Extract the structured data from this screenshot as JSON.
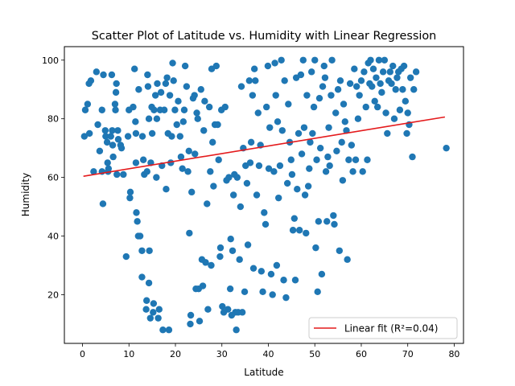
{
  "chart_data": {
    "type": "scatter",
    "title": "Scatter Plot of Latitude vs. Humidity with Linear Regression",
    "xlabel": "Latitude",
    "ylabel": "Humidity",
    "xlim": [
      -3.9,
      82.0
    ],
    "ylim": [
      3.4,
      104.6
    ],
    "xticks": [
      0,
      10,
      20,
      30,
      40,
      50,
      60,
      70,
      80
    ],
    "yticks": [
      20,
      40,
      60,
      80,
      100
    ],
    "grid": false,
    "legend_position": "lower right",
    "series": [
      {
        "kind": "scatter",
        "color": "#1f77b4",
        "points": [
          [
            0.4,
            74
          ],
          [
            0.6,
            83
          ],
          [
            1.1,
            85
          ],
          [
            1.4,
            92
          ],
          [
            1.8,
            93
          ],
          [
            1.5,
            75
          ],
          [
            2.4,
            62
          ],
          [
            3.0,
            96
          ],
          [
            3.3,
            78
          ],
          [
            3.7,
            69
          ],
          [
            4.2,
            62
          ],
          [
            4.2,
            83
          ],
          [
            4.4,
            51
          ],
          [
            4.5,
            95
          ],
          [
            4.9,
            76
          ],
          [
            5.0,
            74
          ],
          [
            5.3,
            72
          ],
          [
            5.4,
            65
          ],
          [
            5.5,
            62
          ],
          [
            5.6,
            63
          ],
          [
            6.1,
            74
          ],
          [
            6.3,
            95
          ],
          [
            6.4,
            76
          ],
          [
            6.5,
            71
          ],
          [
            6.6,
            67
          ],
          [
            7.0,
            85
          ],
          [
            7.1,
            83
          ],
          [
            7.2,
            89
          ],
          [
            7.3,
            92
          ],
          [
            7.4,
            61
          ],
          [
            7.6,
            76
          ],
          [
            7.7,
            73
          ],
          [
            8.2,
            71
          ],
          [
            8.4,
            70
          ],
          [
            8.8,
            61
          ],
          [
            9.4,
            33
          ],
          [
            9.8,
            74
          ],
          [
            10.0,
            83
          ],
          [
            10.2,
            53
          ],
          [
            10.3,
            55
          ],
          [
            10.9,
            84
          ],
          [
            11.2,
            97
          ],
          [
            11.4,
            79
          ],
          [
            11.5,
            75
          ],
          [
            11.5,
            65
          ],
          [
            11.6,
            48
          ],
          [
            11.8,
            45
          ],
          [
            12.0,
            40
          ],
          [
            12.1,
            90
          ],
          [
            12.4,
            40
          ],
          [
            12.8,
            35
          ],
          [
            12.8,
            26
          ],
          [
            12.9,
            74
          ],
          [
            13.1,
            66
          ],
          [
            13.3,
            61
          ],
          [
            13.7,
            15
          ],
          [
            13.8,
            18
          ],
          [
            13.9,
            62
          ],
          [
            14.0,
            95
          ],
          [
            14.1,
            91
          ],
          [
            14.3,
            80
          ],
          [
            14.3,
            24
          ],
          [
            14.4,
            35
          ],
          [
            14.6,
            12
          ],
          [
            14.7,
            65
          ],
          [
            14.9,
            84
          ],
          [
            15.0,
            75
          ],
          [
            15.2,
            14
          ],
          [
            15.3,
            17
          ],
          [
            15.4,
            83
          ],
          [
            15.7,
            88
          ],
          [
            15.9,
            60
          ],
          [
            16.0,
            80
          ],
          [
            16.1,
            92
          ],
          [
            16.3,
            12
          ],
          [
            16.5,
            15
          ],
          [
            16.7,
            83
          ],
          [
            16.9,
            89
          ],
          [
            17.1,
            64
          ],
          [
            17.3,
            8
          ],
          [
            17.6,
            83
          ],
          [
            17.9,
            92
          ],
          [
            18.0,
            56
          ],
          [
            18.2,
            94
          ],
          [
            18.4,
            75
          ],
          [
            18.6,
            8
          ],
          [
            18.8,
            88
          ],
          [
            19.0,
            65
          ],
          [
            19.2,
            74
          ],
          [
            19.4,
            99
          ],
          [
            19.6,
            93
          ],
          [
            19.9,
            83
          ],
          [
            20.3,
            78
          ],
          [
            20.6,
            86
          ],
          [
            21.0,
            74
          ],
          [
            21.2,
            67
          ],
          [
            21.5,
            63
          ],
          [
            21.7,
            79
          ],
          [
            21.9,
            83
          ],
          [
            22.1,
            98
          ],
          [
            22.4,
            91
          ],
          [
            22.7,
            62
          ],
          [
            22.9,
            69
          ],
          [
            23.0,
            41
          ],
          [
            23.2,
            10
          ],
          [
            23.3,
            13
          ],
          [
            23.5,
            55
          ],
          [
            23.8,
            87
          ],
          [
            24.1,
            88
          ],
          [
            24.2,
            68
          ],
          [
            24.4,
            22
          ],
          [
            24.6,
            82
          ],
          [
            24.8,
            80
          ],
          [
            25.0,
            22
          ],
          [
            25.2,
            11
          ],
          [
            25.5,
            90
          ],
          [
            25.7,
            32
          ],
          [
            25.9,
            23
          ],
          [
            26.1,
            76
          ],
          [
            26.3,
            86
          ],
          [
            26.5,
            31
          ],
          [
            26.8,
            51
          ],
          [
            27.0,
            15
          ],
          [
            27.3,
            84
          ],
          [
            27.5,
            62
          ],
          [
            27.7,
            30
          ],
          [
            27.8,
            97
          ],
          [
            28.0,
            72
          ],
          [
            28.2,
            57
          ],
          [
            28.5,
            78
          ],
          [
            28.8,
            98
          ],
          [
            29.1,
            78
          ],
          [
            29.3,
            66
          ],
          [
            29.6,
            33
          ],
          [
            29.7,
            36
          ],
          [
            29.9,
            83
          ],
          [
            30.1,
            16
          ],
          [
            30.4,
            14
          ],
          [
            30.7,
            84
          ],
          [
            31.0,
            59
          ],
          [
            31.3,
            15
          ],
          [
            31.5,
            60
          ],
          [
            31.8,
            22
          ],
          [
            31.9,
            39
          ],
          [
            32.1,
            13
          ],
          [
            32.3,
            35
          ],
          [
            32.5,
            54
          ],
          [
            32.7,
            61
          ],
          [
            32.9,
            14
          ],
          [
            33.1,
            8
          ],
          [
            33.3,
            60
          ],
          [
            33.5,
            14
          ],
          [
            33.8,
            32
          ],
          [
            34.0,
            50
          ],
          [
            34.2,
            91
          ],
          [
            34.4,
            14
          ],
          [
            34.6,
            70
          ],
          [
            34.9,
            21
          ],
          [
            35.1,
            64
          ],
          [
            35.4,
            58
          ],
          [
            35.6,
            37
          ],
          [
            35.9,
            93
          ],
          [
            36.1,
            65
          ],
          [
            36.3,
            72
          ],
          [
            36.6,
            88
          ],
          [
            36.8,
            29
          ],
          [
            37.0,
            97
          ],
          [
            37.2,
            93
          ],
          [
            37.5,
            54
          ],
          [
            37.8,
            82
          ],
          [
            38.0,
            64
          ],
          [
            38.3,
            71
          ],
          [
            38.5,
            28
          ],
          [
            38.8,
            21
          ],
          [
            39.1,
            48
          ],
          [
            39.4,
            44
          ],
          [
            39.6,
            84
          ],
          [
            39.9,
            98
          ],
          [
            40.1,
            63
          ],
          [
            40.3,
            77
          ],
          [
            40.6,
            27
          ],
          [
            40.9,
            20
          ],
          [
            41.2,
            62
          ],
          [
            41.4,
            99
          ],
          [
            41.6,
            88
          ],
          [
            41.8,
            30
          ],
          [
            42.0,
            79
          ],
          [
            42.2,
            53
          ],
          [
            42.5,
            64
          ],
          [
            42.8,
            100
          ],
          [
            43.0,
            76
          ],
          [
            43.3,
            25
          ],
          [
            43.5,
            93
          ],
          [
            43.8,
            19
          ],
          [
            44.1,
            58
          ],
          [
            44.3,
            85
          ],
          [
            44.6,
            72
          ],
          [
            44.9,
            66
          ],
          [
            45.1,
            61
          ],
          [
            45.3,
            42
          ],
          [
            45.6,
            46
          ],
          [
            45.8,
            25
          ],
          [
            46.0,
            94
          ],
          [
            46.2,
            56
          ],
          [
            46.5,
            75
          ],
          [
            46.7,
            42
          ],
          [
            47.0,
            95
          ],
          [
            47.2,
            68
          ],
          [
            47.5,
            100
          ],
          [
            47.7,
            77
          ],
          [
            47.9,
            54
          ],
          [
            48.1,
            41
          ],
          [
            48.3,
            88
          ],
          [
            48.6,
            57
          ],
          [
            48.8,
            63
          ],
          [
            49.0,
            72
          ],
          [
            49.3,
            96
          ],
          [
            49.5,
            75
          ],
          [
            49.8,
            84
          ],
          [
            50.0,
            100
          ],
          [
            50.2,
            36
          ],
          [
            50.4,
            66
          ],
          [
            50.6,
            21
          ],
          [
            50.8,
            45
          ],
          [
            51.0,
            87
          ],
          [
            51.2,
            70
          ],
          [
            51.5,
            27
          ],
          [
            51.7,
            91
          ],
          [
            52.0,
            98
          ],
          [
            52.2,
            94
          ],
          [
            52.4,
            62
          ],
          [
            52.6,
            45
          ],
          [
            52.8,
            67
          ],
          [
            53.0,
            77
          ],
          [
            53.2,
            64
          ],
          [
            53.5,
            88
          ],
          [
            53.7,
            100
          ],
          [
            54.0,
            47
          ],
          [
            54.2,
            44
          ],
          [
            54.5,
            82
          ],
          [
            54.7,
            69
          ],
          [
            55.0,
            90
          ],
          [
            55.3,
            35
          ],
          [
            55.5,
            93
          ],
          [
            55.8,
            72
          ],
          [
            56.0,
            59
          ],
          [
            56.2,
            85
          ],
          [
            56.5,
            79
          ],
          [
            56.8,
            76
          ],
          [
            57.0,
            32
          ],
          [
            57.3,
            66
          ],
          [
            57.6,
            92
          ],
          [
            57.9,
            71
          ],
          [
            58.2,
            62
          ],
          [
            58.5,
            97
          ],
          [
            58.8,
            66
          ],
          [
            59.0,
            91
          ],
          [
            59.3,
            80
          ],
          [
            59.6,
            88
          ],
          [
            60.0,
            93
          ],
          [
            60.3,
            62
          ],
          [
            60.6,
            96
          ],
          [
            61.0,
            84
          ],
          [
            61.3,
            66
          ],
          [
            61.5,
            99
          ],
          [
            61.8,
            92
          ],
          [
            62.0,
            100
          ],
          [
            62.3,
            91
          ],
          [
            62.6,
            97
          ],
          [
            62.9,
            86
          ],
          [
            63.2,
            94
          ],
          [
            63.5,
            84
          ],
          [
            63.8,
            100
          ],
          [
            64.1,
            92
          ],
          [
            64.4,
            89
          ],
          [
            64.7,
            96
          ],
          [
            65.0,
            100
          ],
          [
            65.3,
            82
          ],
          [
            65.6,
            75
          ],
          [
            65.9,
            93
          ],
          [
            66.2,
            96
          ],
          [
            66.5,
            92
          ],
          [
            66.8,
            98
          ],
          [
            67.1,
            80
          ],
          [
            67.4,
            90
          ],
          [
            67.7,
            94
          ],
          [
            68.0,
            96
          ],
          [
            68.3,
            83
          ],
          [
            68.6,
            97
          ],
          [
            68.9,
            90
          ],
          [
            69.2,
            98
          ],
          [
            69.5,
            86
          ],
          [
            69.8,
            75
          ],
          [
            70.0,
            82
          ],
          [
            70.3,
            78
          ],
          [
            70.6,
            94
          ],
          [
            71.0,
            67
          ],
          [
            71.3,
            90
          ],
          [
            71.8,
            96
          ],
          [
            78.3,
            70
          ]
        ]
      },
      {
        "kind": "line",
        "name": "Linear fit (R²=0.04)",
        "color": "#e41a1c",
        "x": [
          0.2,
          78.0
        ],
        "y": [
          60.4,
          80.6
        ]
      }
    ]
  }
}
